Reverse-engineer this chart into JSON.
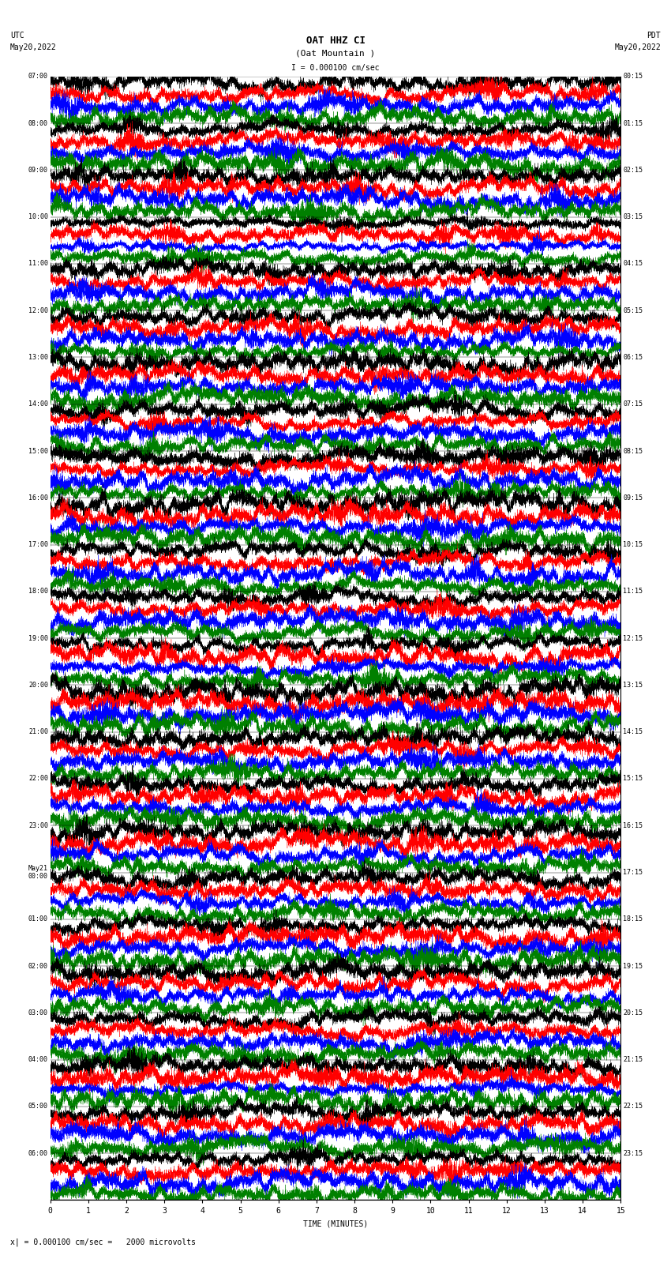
{
  "title_line1": "OAT HHZ CI",
  "title_line2": "(Oat Mountain )",
  "scale_label": "I = 0.000100 cm/sec",
  "footer_label": "= 0.000100 cm/sec =   2000 microvolts",
  "left_header": "UTC\nMay20,2022",
  "right_header": "PDT\nMay20,2022",
  "left_times": [
    "07:00",
    "08:00",
    "09:00",
    "10:00",
    "11:00",
    "12:00",
    "13:00",
    "14:00",
    "15:00",
    "16:00",
    "17:00",
    "18:00",
    "19:00",
    "20:00",
    "21:00",
    "22:00",
    "23:00",
    "May21\n00:00",
    "01:00",
    "02:00",
    "03:00",
    "04:00",
    "05:00",
    "06:00"
  ],
  "right_times": [
    "00:15",
    "01:15",
    "02:15",
    "03:15",
    "04:15",
    "05:15",
    "06:15",
    "07:15",
    "08:15",
    "09:15",
    "10:15",
    "11:15",
    "12:15",
    "13:15",
    "14:15",
    "15:15",
    "16:15",
    "17:15",
    "18:15",
    "19:15",
    "20:15",
    "21:15",
    "22:15",
    "23:15"
  ],
  "n_rows": 24,
  "n_traces_per_row": 4,
  "colors": [
    "black",
    "red",
    "blue",
    "green"
  ],
  "bg_color": "white",
  "time_xlabel": "TIME (MINUTES)",
  "x_ticks": [
    0,
    1,
    2,
    3,
    4,
    5,
    6,
    7,
    8,
    9,
    10,
    11,
    12,
    13,
    14,
    15
  ],
  "noise_seed": 42,
  "fig_width": 8.5,
  "fig_height": 16.13,
  "dpi": 100,
  "trace_amplitude": 0.42,
  "n_points": 9000,
  "linewidth": 0.25
}
